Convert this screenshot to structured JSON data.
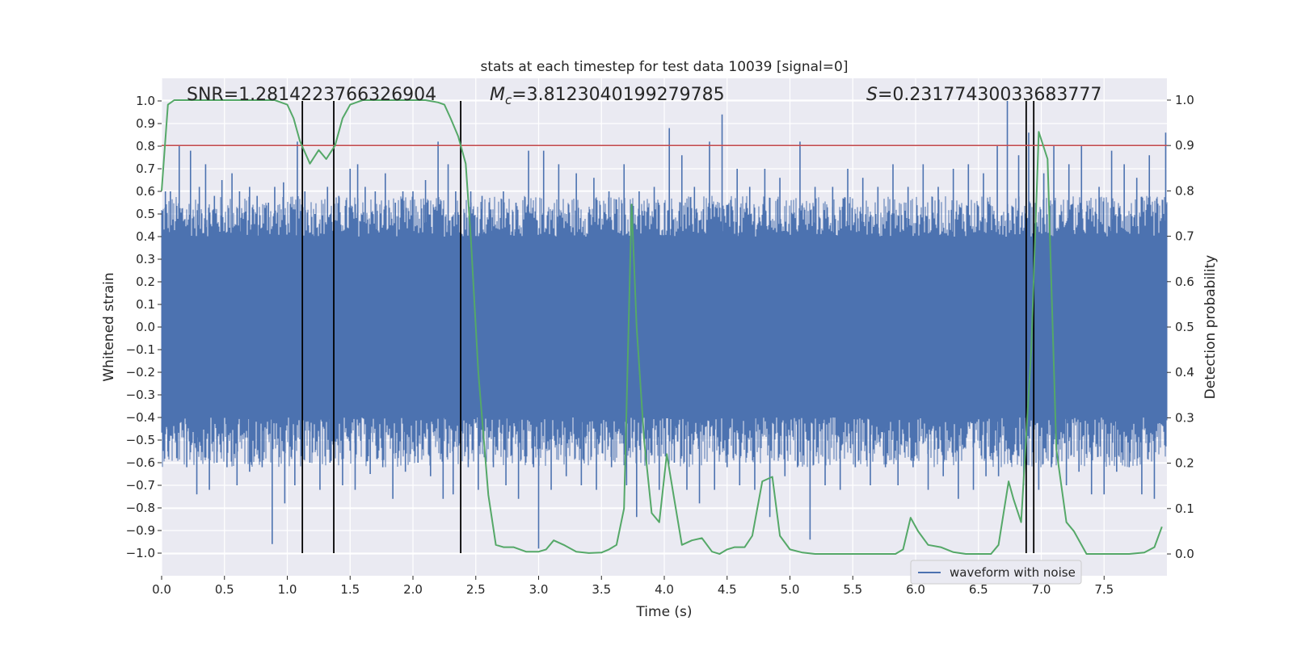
{
  "chart_data": {
    "type": "line",
    "title": "stats at each timestep for test data 10039 [signal=0]",
    "xlabel": "Time (s)",
    "ylabel": "Whitened strain",
    "y2label": "Detection probability",
    "xlim": [
      0,
      8
    ],
    "ylim": [
      -1.1,
      1.1
    ],
    "y2lim": [
      -0.048,
      1.048
    ],
    "x_ticks": [
      0.0,
      0.5,
      1.0,
      1.5,
      2.0,
      2.5,
      3.0,
      3.5,
      4.0,
      4.5,
      5.0,
      5.5,
      6.0,
      6.5,
      7.0,
      7.5
    ],
    "x_tick_labels": [
      "0.0",
      "0.5",
      "1.0",
      "1.5",
      "2.0",
      "2.5",
      "3.0",
      "3.5",
      "4.0",
      "4.5",
      "5.0",
      "5.5",
      "6.0",
      "6.5",
      "7.0",
      "7.5"
    ],
    "y_ticks": [
      1.0,
      0.9,
      0.8,
      0.7,
      0.6,
      0.5,
      0.4,
      0.3,
      0.2,
      0.1,
      0.0,
      -0.1,
      -0.2,
      -0.3,
      -0.4,
      -0.5,
      -0.6,
      -0.7,
      -0.8,
      -0.9,
      -1.0
    ],
    "y_tick_labels": [
      "1.0",
      "0.9",
      "0.8",
      "0.7",
      "0.6",
      "0.5",
      "0.4",
      "0.3",
      "0.2",
      "0.1",
      "0.0",
      "−0.1",
      "−0.2",
      "−0.3",
      "−0.4",
      "−0.5",
      "−0.6",
      "−0.7",
      "−0.8",
      "−0.9",
      "−1.0"
    ],
    "y2_ticks": [
      1.0,
      0.9,
      0.8,
      0.7,
      0.6,
      0.5,
      0.4,
      0.3,
      0.2,
      0.1,
      0.0
    ],
    "y2_tick_labels": [
      "1.0",
      "0.9",
      "0.8",
      "0.7",
      "0.6",
      "0.5",
      "0.4",
      "0.3",
      "0.2",
      "0.1",
      "0.0"
    ],
    "grid": true,
    "legend": {
      "position": "bottom-right",
      "entries": [
        {
          "label": "waveform with noise",
          "color": "#4c72b0"
        }
      ]
    },
    "annotations": {
      "snr": "SNR=1.2814223766326904",
      "mc_symbol": "M",
      "mc_subscript": "c",
      "mc_value": "=3.8123040199279785",
      "s_symbol": "S",
      "s_value": "=0.23177430033683777"
    },
    "threshold_line": {
      "y2": 0.9,
      "color": "#c44e52"
    },
    "vertical_lines": [
      1.12,
      1.37,
      2.38,
      6.88,
      6.94
    ],
    "waveform": {
      "name": "waveform with noise",
      "color": "#4c72b0",
      "description_band": [
        -0.4,
        0.4
      ],
      "spikes_up": [
        [
          0.03,
          0.6
        ],
        [
          0.07,
          0.6
        ],
        [
          0.14,
          0.8
        ],
        [
          0.23,
          0.78
        ],
        [
          0.3,
          0.62
        ],
        [
          0.35,
          0.72
        ],
        [
          0.42,
          0.58
        ],
        [
          0.48,
          0.65
        ],
        [
          0.56,
          0.68
        ],
        [
          0.62,
          0.6
        ],
        [
          0.7,
          0.62
        ],
        [
          0.76,
          0.58
        ],
        [
          0.85,
          0.55
        ],
        [
          0.9,
          0.62
        ],
        [
          0.97,
          0.64
        ],
        [
          1.08,
          0.82
        ],
        [
          1.14,
          0.6
        ],
        [
          1.22,
          0.5
        ],
        [
          1.32,
          0.62
        ],
        [
          1.41,
          0.58
        ],
        [
          1.5,
          0.7
        ],
        [
          1.56,
          0.72
        ],
        [
          1.62,
          0.62
        ],
        [
          1.7,
          0.6
        ],
        [
          1.78,
          0.68
        ],
        [
          1.86,
          0.55
        ],
        [
          1.92,
          0.6
        ],
        [
          2.0,
          0.6
        ],
        [
          2.1,
          0.65
        ],
        [
          2.2,
          0.82
        ],
        [
          2.28,
          0.72
        ],
        [
          2.34,
          0.6
        ],
        [
          2.46,
          0.6
        ],
        [
          2.55,
          0.58
        ],
        [
          2.62,
          0.52
        ],
        [
          2.72,
          0.6
        ],
        [
          2.82,
          0.55
        ],
        [
          2.92,
          0.78
        ],
        [
          3.04,
          0.78
        ],
        [
          3.16,
          0.72
        ],
        [
          3.3,
          0.68
        ],
        [
          3.44,
          0.66
        ],
        [
          3.56,
          0.6
        ],
        [
          3.68,
          0.72
        ],
        [
          3.8,
          0.6
        ],
        [
          3.92,
          0.62
        ],
        [
          4.04,
          0.88
        ],
        [
          4.14,
          0.76
        ],
        [
          4.24,
          0.62
        ],
        [
          4.36,
          0.82
        ],
        [
          4.46,
          0.94
        ],
        [
          4.58,
          0.7
        ],
        [
          4.68,
          0.62
        ],
        [
          4.8,
          0.7
        ],
        [
          4.92,
          0.66
        ],
        [
          5.08,
          0.82
        ],
        [
          5.2,
          0.62
        ],
        [
          5.34,
          0.62
        ],
        [
          5.46,
          0.7
        ],
        [
          5.58,
          0.66
        ],
        [
          5.7,
          0.62
        ],
        [
          5.82,
          0.72
        ],
        [
          5.94,
          0.62
        ],
        [
          6.06,
          0.72
        ],
        [
          6.18,
          0.62
        ],
        [
          6.3,
          0.7
        ],
        [
          6.42,
          0.72
        ],
        [
          6.54,
          0.68
        ],
        [
          6.65,
          0.8
        ],
        [
          6.73,
          1.0
        ],
        [
          6.82,
          0.76
        ],
        [
          6.9,
          0.86
        ],
        [
          7.02,
          0.68
        ],
        [
          7.1,
          0.8
        ],
        [
          7.22,
          0.72
        ],
        [
          7.32,
          0.8
        ],
        [
          7.46,
          0.62
        ],
        [
          7.56,
          0.78
        ],
        [
          7.66,
          0.72
        ],
        [
          7.76,
          0.66
        ],
        [
          7.86,
          0.76
        ],
        [
          7.99,
          0.86
        ]
      ],
      "spikes_down": [
        [
          0.05,
          -0.55
        ],
        [
          0.12,
          -0.58
        ],
        [
          0.2,
          -0.62
        ],
        [
          0.28,
          -0.74
        ],
        [
          0.38,
          -0.72
        ],
        [
          0.44,
          -0.6
        ],
        [
          0.52,
          -0.62
        ],
        [
          0.6,
          -0.7
        ],
        [
          0.7,
          -0.64
        ],
        [
          0.8,
          -0.62
        ],
        [
          0.88,
          -0.96
        ],
        [
          0.98,
          -0.78
        ],
        [
          1.06,
          -0.7
        ],
        [
          1.18,
          -0.6
        ],
        [
          1.26,
          -0.72
        ],
        [
          1.34,
          -0.6
        ],
        [
          1.44,
          -0.7
        ],
        [
          1.54,
          -0.72
        ],
        [
          1.66,
          -0.65
        ],
        [
          1.76,
          -0.62
        ],
        [
          1.84,
          -0.76
        ],
        [
          1.94,
          -0.64
        ],
        [
          2.04,
          -0.6
        ],
        [
          2.14,
          -0.66
        ],
        [
          2.24,
          -0.76
        ],
        [
          2.32,
          -0.74
        ],
        [
          2.44,
          -0.62
        ],
        [
          2.52,
          -0.72
        ],
        [
          2.64,
          -0.62
        ],
        [
          2.74,
          -0.7
        ],
        [
          2.84,
          -0.76
        ],
        [
          2.96,
          -0.62
        ],
        [
          3.0,
          -0.98
        ],
        [
          3.1,
          -0.72
        ],
        [
          3.22,
          -0.66
        ],
        [
          3.34,
          -0.7
        ],
        [
          3.46,
          -0.72
        ],
        [
          3.58,
          -0.62
        ],
        [
          3.7,
          -0.7
        ],
        [
          3.78,
          -0.84
        ],
        [
          3.86,
          -0.6
        ],
        [
          3.96,
          -0.72
        ],
        [
          4.08,
          -0.6
        ],
        [
          4.18,
          -0.72
        ],
        [
          4.28,
          -0.78
        ],
        [
          4.4,
          -0.72
        ],
        [
          4.5,
          -0.62
        ],
        [
          4.6,
          -0.7
        ],
        [
          4.72,
          -0.72
        ],
        [
          4.84,
          -0.84
        ],
        [
          4.96,
          -0.66
        ],
        [
          5.06,
          -0.62
        ],
        [
          5.16,
          -0.94
        ],
        [
          5.28,
          -0.7
        ],
        [
          5.4,
          -0.72
        ],
        [
          5.52,
          -0.62
        ],
        [
          5.64,
          -0.7
        ],
        [
          5.76,
          -0.62
        ],
        [
          5.86,
          -0.7
        ],
        [
          5.98,
          -0.62
        ],
        [
          6.1,
          -0.72
        ],
        [
          6.22,
          -0.66
        ],
        [
          6.34,
          -0.76
        ],
        [
          6.46,
          -0.72
        ],
        [
          6.56,
          -0.66
        ],
        [
          6.66,
          -0.66
        ],
        [
          6.76,
          -0.6
        ],
        [
          6.86,
          -0.7
        ],
        [
          6.98,
          -0.72
        ],
        [
          7.08,
          -0.62
        ],
        [
          7.2,
          -0.7
        ],
        [
          7.3,
          -0.64
        ],
        [
          7.4,
          -0.74
        ],
        [
          7.5,
          -0.74
        ],
        [
          7.6,
          -0.64
        ],
        [
          7.7,
          -0.62
        ],
        [
          7.8,
          -0.74
        ],
        [
          7.9,
          -0.76
        ]
      ]
    },
    "detection_probability": {
      "color": "#55a868",
      "x": [
        0.0,
        0.05,
        0.1,
        0.2,
        0.3,
        0.4,
        0.5,
        0.6,
        0.7,
        0.8,
        0.9,
        0.95,
        1.0,
        1.05,
        1.1,
        1.18,
        1.25,
        1.31,
        1.38,
        1.44,
        1.5,
        1.6,
        1.7,
        1.8,
        1.9,
        2.0,
        2.1,
        2.2,
        2.25,
        2.3,
        2.36,
        2.42,
        2.46,
        2.52,
        2.6,
        2.66,
        2.72,
        2.8,
        2.9,
        3.0,
        3.06,
        3.12,
        3.2,
        3.3,
        3.4,
        3.5,
        3.56,
        3.62,
        3.68,
        3.74,
        3.78,
        3.84,
        3.9,
        3.96,
        4.02,
        4.08,
        4.14,
        4.22,
        4.3,
        4.38,
        4.44,
        4.5,
        4.56,
        4.64,
        4.7,
        4.78,
        4.86,
        4.92,
        5.0,
        5.1,
        5.2,
        5.3,
        5.5,
        5.7,
        5.84,
        5.9,
        5.96,
        6.02,
        6.1,
        6.2,
        6.3,
        6.4,
        6.5,
        6.6,
        6.66,
        6.74,
        6.78,
        6.84,
        6.92,
        6.98,
        7.05,
        7.12,
        7.2,
        7.26,
        7.36,
        7.5,
        7.7,
        7.82,
        7.9,
        7.96
      ],
      "y": [
        0.8,
        0.99,
        1.0,
        1.0,
        1.0,
        1.0,
        1.0,
        1.0,
        1.0,
        1.0,
        1.0,
        0.995,
        0.99,
        0.96,
        0.91,
        0.86,
        0.89,
        0.87,
        0.9,
        0.96,
        0.99,
        1.0,
        1.0,
        1.0,
        1.0,
        1.0,
        1.0,
        0.995,
        0.99,
        0.96,
        0.92,
        0.86,
        0.7,
        0.4,
        0.13,
        0.02,
        0.015,
        0.015,
        0.005,
        0.005,
        0.01,
        0.03,
        0.02,
        0.005,
        0.002,
        0.003,
        0.01,
        0.02,
        0.1,
        0.77,
        0.5,
        0.25,
        0.09,
        0.07,
        0.22,
        0.12,
        0.02,
        0.03,
        0.035,
        0.005,
        0.0,
        0.01,
        0.015,
        0.015,
        0.04,
        0.16,
        0.17,
        0.04,
        0.01,
        0.003,
        0.0,
        0.0,
        0.0,
        0.0,
        0.0,
        0.01,
        0.08,
        0.05,
        0.02,
        0.015,
        0.004,
        0.0,
        0.0,
        0.0,
        0.02,
        0.16,
        0.12,
        0.07,
        0.45,
        0.93,
        0.87,
        0.23,
        0.07,
        0.05,
        0.0,
        0.0,
        0.0,
        0.003,
        0.015,
        0.06
      ]
    }
  }
}
